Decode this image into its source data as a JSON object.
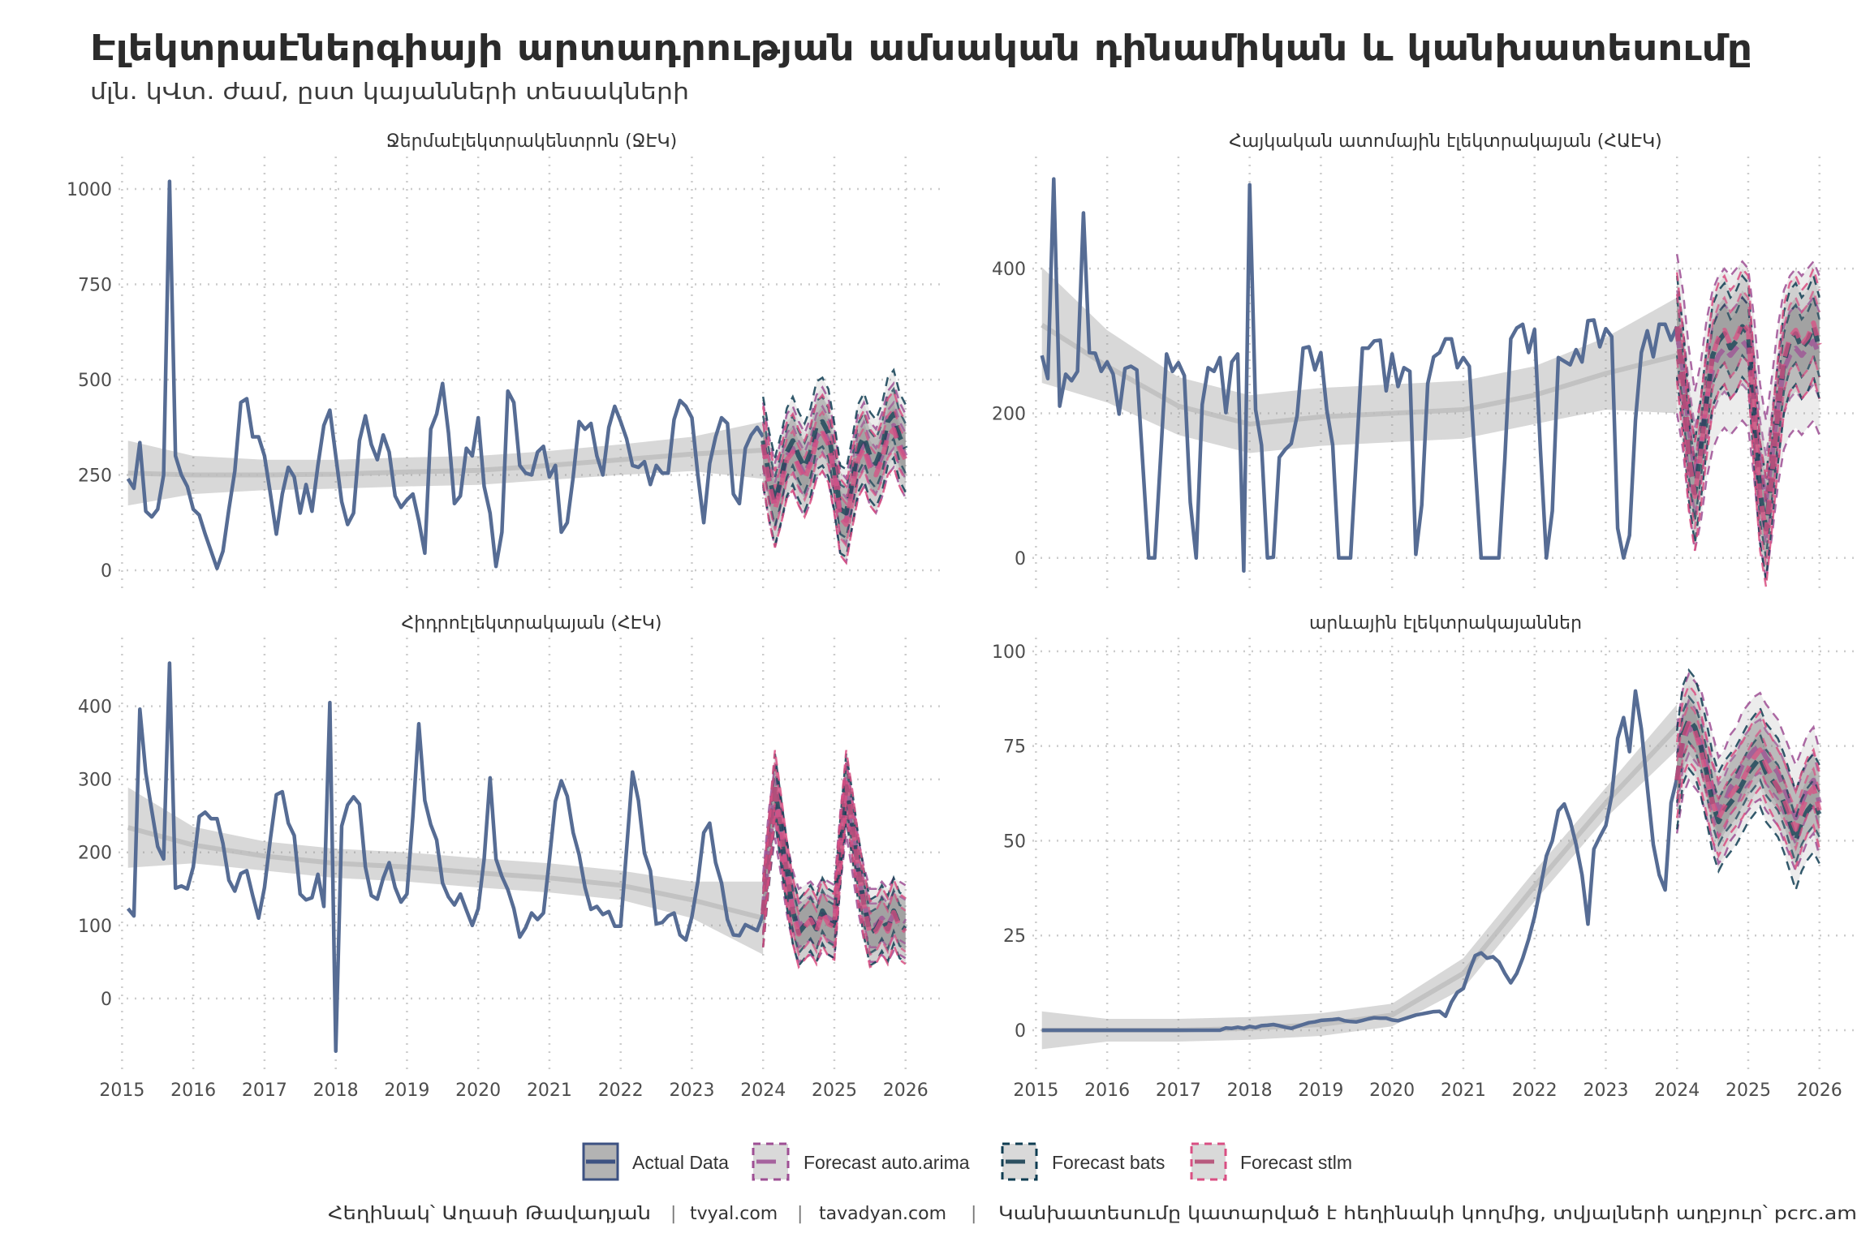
{
  "title": "Էլեկտրաէներգիայի արտադրության ամսական դինամիկան և կանխատեսումը",
  "subtitle": "մլն. կՎտ. ժամ, ըստ կայանների տեսակների",
  "caption": {
    "author": "Հեղինակ՝ Աղասի Թավադյան",
    "site1": "tvyal.com",
    "site2": "tavadyan.com",
    "note": "Կանխատեսումը կատարված է հեղինակի կողմից, տվյալների աղբյուր՝ pcrc.am",
    "sep": "|"
  },
  "legend": [
    {
      "key": "actual",
      "label": "Actual Data"
    },
    {
      "key": "auto.arima",
      "label": "Forecast auto.arima"
    },
    {
      "key": "bats",
      "label": "Forecast bats"
    },
    {
      "key": "stlm",
      "label": "Forecast stlm"
    }
  ],
  "colors": {
    "actual": "#566c94",
    "actual_border": "#3d5282",
    "auto.arima": "#9e4f94",
    "bats": "#0f3d52",
    "stlm": "#d94f83",
    "trend": "#bdbdbd",
    "grid": "#cccccc"
  },
  "chart_data": [
    {
      "type": "line",
      "title": "Ջերմաէլեկտրակենտրոն (ՋԷԿ)",
      "xlim": [
        2014.95,
        2026.55
      ],
      "xticks": [
        2015,
        2016,
        2017,
        2018,
        2019,
        2020,
        2021,
        2022,
        2023,
        2024,
        2025,
        2026
      ],
      "ylim": [
        -51,
        1085
      ],
      "yticks": [
        0,
        250,
        500,
        750,
        1000
      ],
      "actual": {
        "start": "2015-02",
        "values": [
          240,
          215,
          335,
          155,
          140,
          160,
          250,
          1020,
          300,
          250,
          220,
          160,
          145,
          95,
          50,
          5,
          50,
          160,
          260,
          440,
          450,
          350,
          350,
          300,
          200,
          95,
          200,
          270,
          245,
          150,
          225,
          155,
          275,
          380,
          420,
          300,
          180,
          120,
          150,
          340,
          405,
          330,
          290,
          355,
          310,
          195,
          165,
          185,
          200,
          130,
          45,
          370,
          410,
          490,
          360,
          175,
          195,
          320,
          300,
          400,
          220,
          150,
          10,
          100,
          470,
          440,
          275,
          255,
          250,
          310,
          325,
          245,
          275,
          100,
          125,
          245,
          390,
          370,
          385,
          300,
          250,
          375,
          430,
          390,
          345,
          275,
          270,
          285,
          225,
          275,
          255,
          255,
          395,
          445,
          430,
          400,
          250,
          125,
          280,
          350,
          400,
          385,
          200,
          175,
          320,
          355,
          375,
          350
        ]
      },
      "trend": {
        "years": [
          2015,
          2016,
          2017,
          2018,
          2019,
          2020,
          2021,
          2022,
          2023,
          2024
        ],
        "values": [
          255,
          250,
          250,
          252,
          258,
          262,
          275,
          290,
          305,
          315
        ],
        "ci_halfwidth": [
          85,
          50,
          40,
          38,
          38,
          38,
          38,
          40,
          45,
          75
        ]
      },
      "forecast": {
        "start": "2024-01",
        "models": [
          {
            "name": "auto.arima",
            "pi80": 60,
            "pi95": 110,
            "mean": [
              330,
              240,
              170,
              230,
              300,
              320,
              280,
              250,
              290,
              350,
              370,
              340,
              260,
              150,
              130,
              220,
              300,
              330,
              280,
              260,
              300,
              360,
              380,
              330,
              300
            ]
          },
          {
            "name": "bats",
            "pi80": 65,
            "pi95": 115,
            "mean": [
              340,
              250,
              180,
              240,
              310,
              340,
              300,
              270,
              310,
              380,
              390,
              360,
              270,
              160,
              150,
              230,
              320,
              350,
              300,
              280,
              320,
              390,
              410,
              350,
              320
            ]
          },
          {
            "name": "stlm",
            "pi80": 55,
            "pi95": 100,
            "mean": [
              330,
              230,
              160,
              220,
              290,
              310,
              270,
              240,
              280,
              340,
              360,
              330,
              250,
              140,
              120,
              210,
              290,
              320,
              270,
              250,
              290,
              350,
              370,
              320,
              290
            ]
          }
        ]
      }
    },
    {
      "type": "line",
      "title": "Հայկական ատոմային էլեկտրակայան (ՀԱԷԿ)",
      "xlim": [
        2014.95,
        2026.55
      ],
      "xticks": [
        2015,
        2016,
        2017,
        2018,
        2019,
        2020,
        2021,
        2022,
        2023,
        2024,
        2025,
        2026
      ],
      "ylim": [
        -44,
        555
      ],
      "yticks": [
        0,
        200,
        400
      ],
      "actual": {
        "start": "2015-02",
        "values": [
          280,
          248,
          524,
          210,
          254,
          245,
          258,
          477,
          284,
          283,
          258,
          271,
          254,
          199,
          262,
          265,
          260,
          130,
          0,
          0,
          140,
          282,
          258,
          270,
          252,
          77,
          0,
          212,
          263,
          258,
          277,
          201,
          271,
          282,
          -18,
          516,
          205,
          156,
          0,
          1,
          139,
          150,
          158,
          197,
          290,
          292,
          260,
          284,
          205,
          156,
          0,
          0,
          0,
          145,
          290,
          290,
          300,
          301,
          231,
          282,
          237,
          263,
          258,
          5,
          73,
          241,
          278,
          284,
          303,
          303,
          263,
          277,
          265,
          129,
          0,
          0,
          0,
          0,
          137,
          303,
          318,
          323,
          284,
          316,
          148,
          0,
          65,
          277,
          272,
          267,
          288,
          271,
          328,
          329,
          292,
          317,
          306,
          41,
          0,
          31,
          190,
          284,
          314,
          278,
          323,
          323,
          301,
          320
        ]
      },
      "trend": {
        "years": [
          2015,
          2016,
          2017,
          2018,
          2019,
          2020,
          2021,
          2022,
          2023,
          2024
        ],
        "values": [
          322,
          265,
          210,
          185,
          195,
          200,
          205,
          225,
          255,
          280
        ],
        "ci_halfwidth": [
          80,
          50,
          40,
          40,
          40,
          40,
          40,
          40,
          50,
          80
        ]
      },
      "forecast": {
        "start": "2024-01",
        "models": [
          {
            "name": "auto.arima",
            "pi80": 60,
            "pi95": 110,
            "mean": [
              310,
              260,
              180,
              120,
              160,
              220,
              260,
              280,
              290,
              280,
              290,
              300,
              290,
              220,
              130,
              80,
              140,
              210,
              260,
              280,
              290,
              280,
              290,
              300,
              280
            ]
          },
          {
            "name": "bats",
            "pi80": 40,
            "pi95": 70,
            "mean": [
              320,
              250,
              150,
              90,
              150,
              220,
              280,
              300,
              310,
              290,
              300,
              320,
              310,
              200,
              90,
              40,
              120,
              200,
              270,
              300,
              310,
              290,
              300,
              320,
              290
            ]
          },
          {
            "name": "stlm",
            "pi80": 45,
            "pi95": 75,
            "mean": [
              320,
              240,
              140,
              85,
              145,
              215,
              280,
              305,
              315,
              295,
              305,
              325,
              315,
              195,
              85,
              35,
              115,
              200,
              275,
              305,
              315,
              295,
              305,
              325,
              295
            ]
          }
        ]
      }
    },
    {
      "type": "line",
      "title": "Հիդրոէլեկտրակայան (ՀԷԿ)",
      "xlim": [
        2014.95,
        2026.55
      ],
      "xticks": [
        2015,
        2016,
        2017,
        2018,
        2019,
        2020,
        2021,
        2022,
        2023,
        2024,
        2025,
        2026
      ],
      "ylim": [
        -99,
        494
      ],
      "yticks": [
        0,
        100,
        200,
        300,
        400
      ],
      "actual": {
        "start": "2015-02",
        "values": [
          123,
          113,
          396,
          309,
          257,
          208,
          191,
          459,
          151,
          154,
          150,
          180,
          249,
          255,
          246,
          246,
          212,
          162,
          147,
          171,
          175,
          141,
          110,
          152,
          219,
          279,
          283,
          240,
          223,
          143,
          135,
          138,
          170,
          126,
          405,
          -72,
          236,
          265,
          276,
          266,
          180,
          141,
          136,
          165,
          186,
          152,
          132,
          143,
          249,
          376,
          271,
          238,
          217,
          158,
          139,
          128,
          143,
          121,
          100,
          123,
          191,
          302,
          191,
          167,
          149,
          123,
          84,
          97,
          117,
          108,
          117,
          190,
          270,
          298,
          277,
          227,
          197,
          152,
          122,
          126,
          115,
          119,
          99,
          99,
          204,
          310,
          271,
          199,
          175,
          102,
          104,
          113,
          117,
          87,
          80,
          112,
          160,
          227,
          240,
          186,
          158,
          108,
          87,
          86,
          101,
          97,
          93,
          115
        ]
      },
      "trend": {
        "years": [
          2015,
          2016,
          2017,
          2018,
          2019,
          2020,
          2021,
          2022,
          2023,
          2024
        ],
        "values": [
          234,
          210,
          195,
          185,
          180,
          172,
          165,
          155,
          135,
          110
        ],
        "ci_halfwidth": [
          55,
          25,
          20,
          20,
          20,
          20,
          20,
          20,
          25,
          50
        ]
      },
      "forecast": {
        "start": "2024-01",
        "models": [
          {
            "name": "auto.arima",
            "pi80": 30,
            "pi95": 50,
            "mean": [
              120,
              210,
              270,
              220,
              165,
              125,
              100,
              105,
              110,
              100,
              115,
              110,
              105,
              205,
              275,
              225,
              170,
              130,
              100,
              100,
              110,
              100,
              115,
              110,
              105
            ]
          },
          {
            "name": "bats",
            "pi80": 28,
            "pi95": 45,
            "mean": [
              115,
              200,
              290,
              230,
              170,
              120,
              90,
              100,
              110,
              95,
              120,
              105,
              100,
              200,
              290,
              240,
              180,
              130,
              90,
              95,
              110,
              95,
              120,
              100,
              95
            ]
          },
          {
            "name": "stlm",
            "pi80": 28,
            "pi95": 45,
            "mean": [
              115,
              205,
              295,
              235,
              170,
              120,
              88,
              98,
              108,
              92,
              118,
              102,
              98,
              205,
              295,
              242,
              178,
              128,
              88,
              92,
              108,
              92,
              118,
              98,
              92
            ]
          }
        ]
      }
    },
    {
      "type": "line",
      "title": "արևային էլեկտրակայաններ",
      "xlim": [
        2014.95,
        2026.55
      ],
      "xticks": [
        2015,
        2016,
        2017,
        2018,
        2019,
        2020,
        2021,
        2022,
        2023,
        2024,
        2025,
        2026
      ],
      "ylim": [
        -10.7,
        103.6
      ],
      "yticks": [
        0,
        25,
        50,
        75,
        100
      ],
      "actual": {
        "start": "2015-02",
        "values": [
          0,
          0,
          0,
          0,
          0,
          0,
          0,
          0,
          0,
          0,
          0,
          0,
          0,
          0,
          0,
          0,
          0,
          0,
          0,
          0,
          0,
          0,
          0,
          0,
          0,
          0,
          0,
          0,
          0,
          0,
          0,
          0.6,
          0.5,
          0.8,
          0.5,
          1.0,
          0.7,
          1.2,
          1.3,
          1.5,
          1.2,
          0.8,
          0.5,
          1.0,
          1.5,
          2.0,
          2.2,
          2.6,
          2.7,
          2.8,
          3.0,
          2.5,
          2.3,
          2.2,
          2.6,
          3.0,
          3.3,
          3.2,
          3.2,
          2.7,
          2.5,
          3.0,
          3.5,
          4.0,
          4.3,
          4.6,
          4.9,
          5.0,
          3.7,
          7.4,
          10,
          11,
          15.7,
          19.7,
          20.4,
          19,
          19.4,
          18,
          15,
          12.5,
          15,
          19,
          24,
          30,
          37.7,
          46,
          50,
          57.9,
          59.7,
          55.3,
          49,
          41,
          28,
          47.8,
          51,
          54,
          62,
          77,
          82.5,
          73.5,
          89.5,
          79.5,
          64.3,
          49,
          41,
          37,
          60,
          66.5
        ]
      },
      "trend": {
        "years": [
          2015,
          2016,
          2017,
          2018,
          2019,
          2020,
          2021,
          2022,
          2023,
          2024
        ],
        "values": [
          0,
          0,
          0,
          0.5,
          1.5,
          4,
          15,
          38,
          60,
          80
        ],
        "ci_halfwidth": [
          5,
          3,
          3,
          3,
          3,
          3,
          4,
          4,
          4,
          6
        ]
      },
      "forecast": {
        "start": "2024-01",
        "models": [
          {
            "name": "auto.arima",
            "pi80": 7,
            "pi95": 14,
            "mean": [
              66,
              76,
              80,
              78,
              76,
              70,
              64,
              58,
              60,
              64,
              66,
              70,
              72,
              74,
              75,
              72,
              70,
              68,
              64,
              60,
              56,
              60,
              64,
              66,
              60
            ]
          },
          {
            "name": "bats",
            "pi80": 6,
            "pi95": 13,
            "mean": [
              66,
              78,
              82,
              80,
              75,
              68,
              60,
              55,
              58,
              60,
              62,
              65,
              68,
              70,
              72,
              68,
              66,
              64,
              60,
              55,
              50,
              55,
              58,
              60,
              57
            ]
          },
          {
            "name": "stlm",
            "pi80": 5,
            "pi95": 10,
            "mean": [
              66,
              77,
              81,
              79,
              74,
              67,
              60,
              56,
              59,
              62,
              64,
              66,
              69,
              72,
              74,
              70,
              67,
              64,
              61,
              57,
              53,
              58,
              62,
              64,
              58
            ]
          }
        ]
      }
    }
  ]
}
